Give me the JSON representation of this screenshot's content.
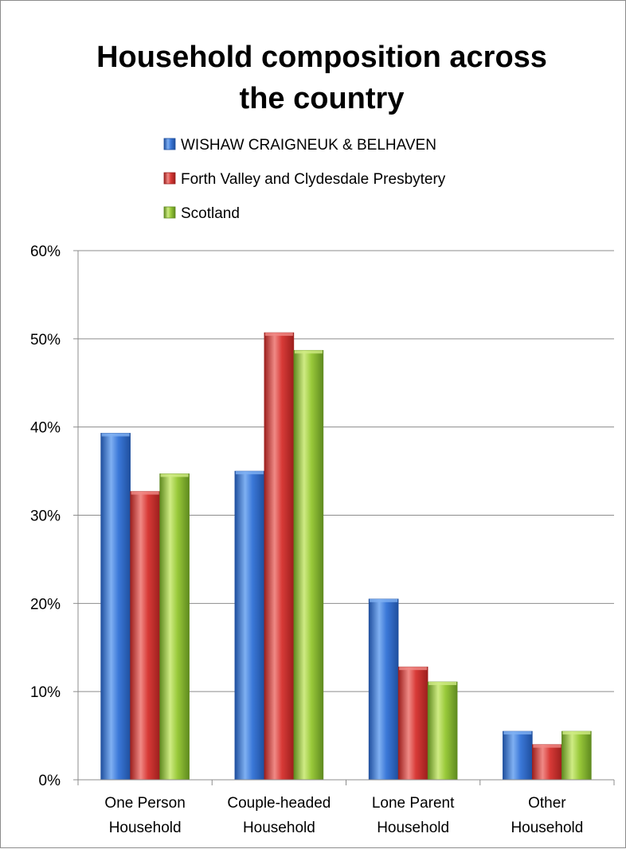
{
  "colors": {
    "series": [
      "#3b78d8",
      "#d83a37",
      "#99c93a"
    ],
    "series_dark": [
      "#1f4f9e",
      "#9c1f1d",
      "#5f8a1f"
    ],
    "series_light": [
      "#7fb0f2",
      "#f08a86",
      "#cfeb84"
    ],
    "gridline": "#8c8c8c"
  },
  "chart_data": {
    "type": "bar",
    "title": "Household composition across the country",
    "title_lines": [
      "Household composition across",
      "the country"
    ],
    "categories": [
      "One Person Household",
      "Couple-headed Household",
      "Lone Parent Household",
      "Other Household"
    ],
    "category_lines": [
      [
        "One Person",
        "Household"
      ],
      [
        "Couple-headed",
        "Household"
      ],
      [
        "Lone Parent",
        "Household"
      ],
      [
        "Other",
        "Household"
      ]
    ],
    "series": [
      {
        "name": "WISHAW CRAIGNEUK & BELHAVEN",
        "values": [
          39.3,
          35.0,
          20.5,
          5.5
        ]
      },
      {
        "name": "Forth Valley and Clydesdale Presbytery",
        "values": [
          32.7,
          50.7,
          12.8,
          4.0
        ]
      },
      {
        "name": "Scotland",
        "values": [
          34.7,
          48.7,
          11.1,
          5.5
        ]
      }
    ],
    "xlabel": "",
    "ylabel": "",
    "ylim": [
      0,
      60
    ],
    "yticks": [
      0,
      10,
      20,
      30,
      40,
      50,
      60
    ],
    "ytick_labels": [
      "0%",
      "10%",
      "20%",
      "30%",
      "40%",
      "50%",
      "60%"
    ],
    "grid": true,
    "legend_position": "top"
  }
}
